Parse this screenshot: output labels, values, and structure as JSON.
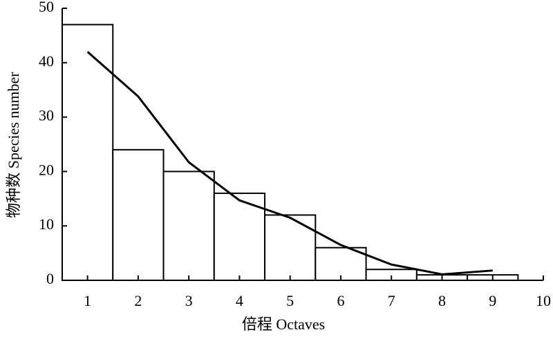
{
  "chart_data": {
    "type": "bar",
    "xlabel": "倍程 Octaves",
    "ylabel": "物种数 Species number",
    "x": [
      1,
      2,
      3,
      4,
      5,
      6,
      7,
      8,
      9
    ],
    "values": [
      47,
      24,
      20,
      16,
      12,
      6,
      2,
      1,
      1
    ],
    "color": "#ffffff",
    "edge_color": "#000000",
    "curve": {
      "x": [
        1,
        2,
        3,
        4,
        5,
        6,
        7,
        8,
        9
      ],
      "values": [
        42,
        33.8,
        21.7,
        14.7,
        11.5,
        6.5,
        2.9,
        1.1,
        1.8
      ],
      "color": "#000000"
    },
    "xlim": [
      0.5,
      10
    ],
    "xticks": [
      1,
      2,
      3,
      4,
      5,
      6,
      7,
      8,
      9,
      10
    ],
    "ylim": [
      0,
      50
    ],
    "yticks": [
      0,
      10,
      20,
      30,
      40,
      50
    ]
  }
}
